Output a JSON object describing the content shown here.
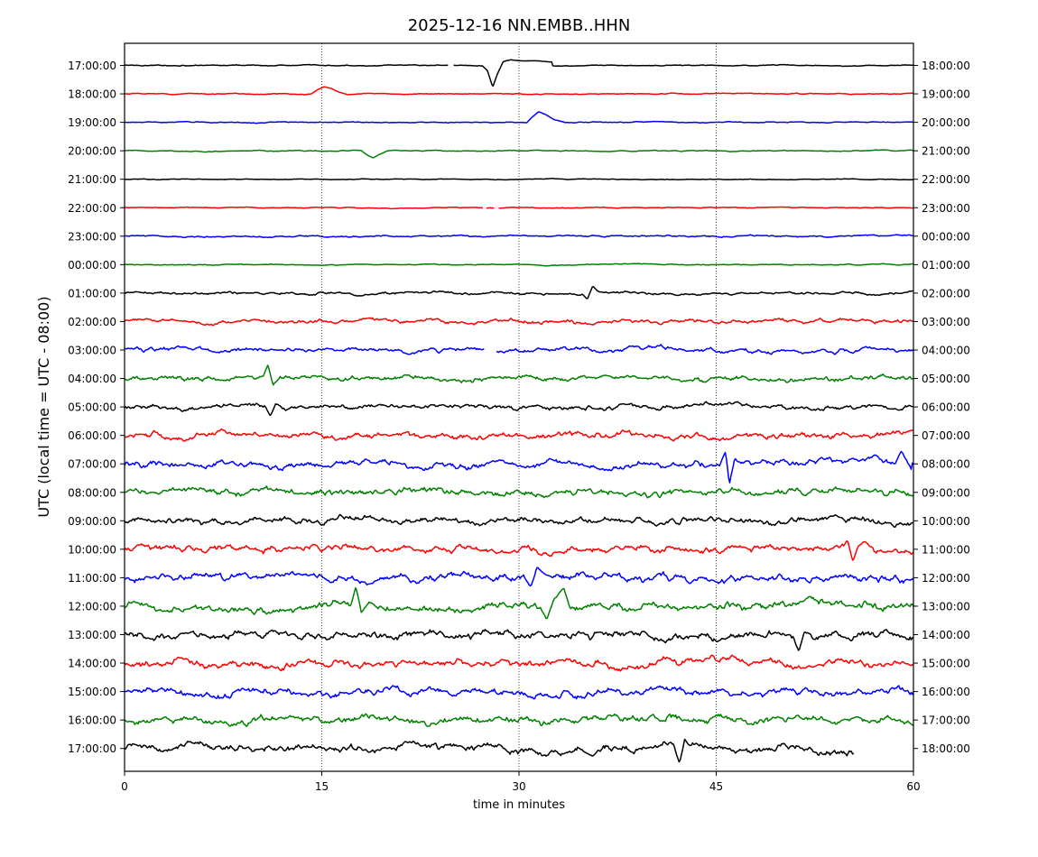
{
  "chart_data": {
    "type": "line",
    "title": "2025-12-16 NN.EMBB..HHN",
    "xlabel": "time in minutes",
    "ylabel": "UTC (local time = UTC - 08:00)",
    "xlim": [
      0,
      60
    ],
    "x_ticks": [
      "0",
      "15",
      "30",
      "45",
      "60"
    ],
    "x_tick_values": [
      0,
      15,
      30,
      45,
      60
    ],
    "vertical_gridlines": [
      15,
      30,
      45
    ],
    "grid_style": "dotted",
    "left_labels": [
      "17:00:00",
      "18:00:00",
      "19:00:00",
      "20:00:00",
      "21:00:00",
      "22:00:00",
      "23:00:00",
      "00:00:00",
      "01:00:00",
      "02:00:00",
      "03:00:00",
      "04:00:00",
      "05:00:00",
      "06:00:00",
      "07:00:00",
      "08:00:00",
      "09:00:00",
      "10:00:00",
      "11:00:00",
      "12:00:00",
      "13:00:00",
      "14:00:00",
      "15:00:00",
      "16:00:00",
      "17:00:00"
    ],
    "right_labels": [
      "18:00:00",
      "19:00:00",
      "20:00:00",
      "21:00:00",
      "22:00:00",
      "23:00:00",
      "00:00:00",
      "01:00:00",
      "02:00:00",
      "03:00:00",
      "04:00:00",
      "05:00:00",
      "06:00:00",
      "07:00:00",
      "08:00:00",
      "09:00:00",
      "10:00:00",
      "11:00:00",
      "12:00:00",
      "13:00:00",
      "14:00:00",
      "15:00:00",
      "16:00:00",
      "17:00:00",
      "18:00:00"
    ],
    "colors": [
      "#000000",
      "#ff0000",
      "#0000ff",
      "#008000"
    ],
    "amplitudes": [
      0.5,
      0.5,
      0.5,
      0.5,
      0.35,
      0.4,
      0.8,
      0.5,
      1.3,
      2.0,
      2.2,
      2.6,
      2.4,
      3.0,
      3.4,
      3.4,
      3.2,
      3.4,
      3.8,
      4.2,
      4.0,
      3.8,
      3.6,
      3.6,
      4.0
    ],
    "last_trace_end_minute": 55.5,
    "gaps": [
      {
        "trace": 0,
        "from": 24.6,
        "to": 25.0
      },
      {
        "trace": 5,
        "from": 27.3,
        "to": 27.5
      },
      {
        "trace": 5,
        "from": 28.2,
        "to": 28.4
      },
      {
        "trace": 10,
        "from": 27.4,
        "to": 28.2
      }
    ],
    "events": [
      {
        "trace": 0,
        "minute": 28.0,
        "shape": [
          [
            27.2,
            0
          ],
          [
            27.6,
            -6
          ],
          [
            28.0,
            -24
          ],
          [
            28.4,
            -8
          ],
          [
            28.8,
            4
          ],
          [
            29.4,
            6
          ],
          [
            30.0,
            5
          ],
          [
            31.5,
            5
          ],
          [
            32.5,
            4
          ]
        ]
      },
      {
        "trace": 1,
        "minute": 15.0,
        "shape": [
          [
            14.2,
            0
          ],
          [
            14.7,
            5
          ],
          [
            15.2,
            8
          ],
          [
            15.7,
            6
          ],
          [
            16.3,
            2
          ],
          [
            17.0,
            -1
          ],
          [
            18.0,
            0
          ]
        ]
      },
      {
        "trace": 2,
        "minute": 31.5,
        "shape": [
          [
            30.6,
            0
          ],
          [
            31.0,
            6
          ],
          [
            31.5,
            12
          ],
          [
            32.0,
            9
          ],
          [
            32.7,
            3
          ],
          [
            33.5,
            0
          ]
        ]
      },
      {
        "trace": 3,
        "minute": 18.8,
        "shape": [
          [
            18.0,
            0
          ],
          [
            18.5,
            -5
          ],
          [
            18.9,
            -8
          ],
          [
            19.4,
            -4
          ],
          [
            20.0,
            0
          ]
        ]
      },
      {
        "trace": 8,
        "minute": 35.6,
        "shape": [
          [
            34.8,
            0
          ],
          [
            35.2,
            -6
          ],
          [
            35.6,
            8
          ],
          [
            36.0,
            2
          ],
          [
            36.6,
            0
          ]
        ]
      },
      {
        "trace": 11,
        "minute": 11.0,
        "shape": [
          [
            10.5,
            0
          ],
          [
            10.9,
            14
          ],
          [
            11.3,
            -8
          ],
          [
            11.8,
            0
          ]
        ]
      },
      {
        "trace": 12,
        "minute": 11.2,
        "shape": [
          [
            10.7,
            0
          ],
          [
            11.1,
            -10
          ],
          [
            11.5,
            4
          ],
          [
            12.0,
            0
          ]
        ]
      },
      {
        "trace": 14,
        "minute": 45.8,
        "shape": [
          [
            45.3,
            0
          ],
          [
            45.7,
            14
          ],
          [
            46.0,
            -22
          ],
          [
            46.4,
            6
          ],
          [
            46.9,
            0
          ]
        ]
      },
      {
        "trace": 14,
        "minute": 59.2,
        "shape": [
          [
            58.6,
            0
          ],
          [
            59.1,
            14
          ],
          [
            59.5,
            2
          ],
          [
            59.9,
            -8
          ]
        ]
      },
      {
        "trace": 17,
        "minute": 55.4,
        "shape": [
          [
            54.6,
            0
          ],
          [
            55.0,
            10
          ],
          [
            55.4,
            -14
          ],
          [
            55.8,
            4
          ],
          [
            56.3,
            8
          ],
          [
            57.0,
            2
          ]
        ]
      },
      {
        "trace": 18,
        "minute": 31.0,
        "shape": [
          [
            30.4,
            0
          ],
          [
            30.9,
            -12
          ],
          [
            31.4,
            12
          ],
          [
            31.9,
            4
          ],
          [
            32.5,
            0
          ]
        ]
      },
      {
        "trace": 19,
        "minute": 17.7,
        "shape": [
          [
            17.2,
            0
          ],
          [
            17.6,
            20
          ],
          [
            18.0,
            -8
          ],
          [
            18.6,
            6
          ],
          [
            19.2,
            0
          ]
        ]
      },
      {
        "trace": 19,
        "minute": 32.1,
        "shape": [
          [
            31.6,
            0
          ],
          [
            32.1,
            -14
          ],
          [
            32.6,
            6
          ],
          [
            33.4,
            20
          ],
          [
            33.9,
            0
          ]
        ]
      },
      {
        "trace": 20,
        "minute": 51.4,
        "shape": [
          [
            50.8,
            0
          ],
          [
            51.3,
            -18
          ],
          [
            51.7,
            4
          ],
          [
            52.2,
            0
          ]
        ]
      },
      {
        "trace": 24,
        "minute": 42.2,
        "shape": [
          [
            41.8,
            0
          ],
          [
            42.2,
            -18
          ],
          [
            42.6,
            8
          ],
          [
            43.0,
            0
          ]
        ]
      }
    ]
  }
}
